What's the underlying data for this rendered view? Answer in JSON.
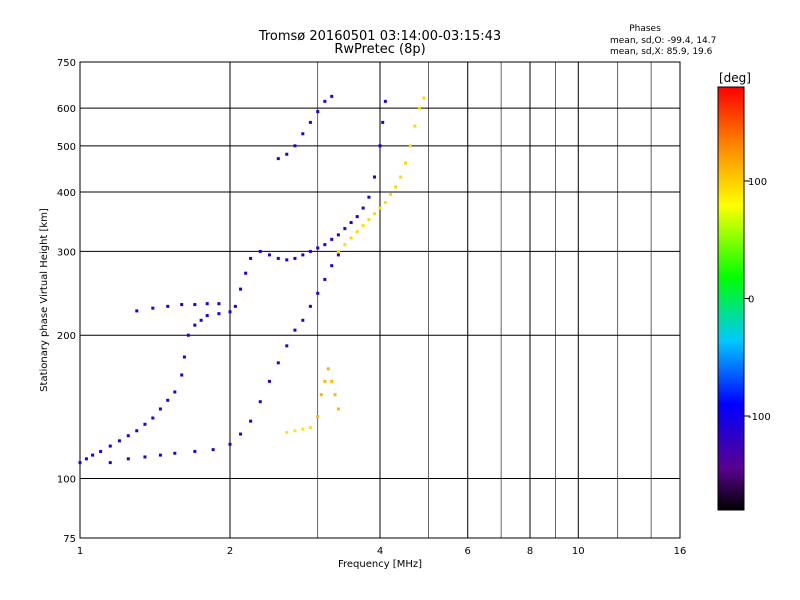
{
  "header": {
    "title_line1": "Tromsø 20160501 03:14:00-03:15:43",
    "title_line2": "RwPretec (8p)"
  },
  "stats": {
    "heading": "Phases",
    "line1": "mean, sd,O: -99.4, 14.7",
    "line2": "mean, sd,X:  85.9, 19.6"
  },
  "chart_data": {
    "type": "scatter",
    "title": "Tromsø 20160501 03:14:00-03:15:43",
    "subtitle": "RwPretec (8p)",
    "xlabel": "Frequency [MHz]",
    "ylabel": "Stationary phase Virtual Height [km]",
    "xscale": "log",
    "yscale": "log",
    "xlim": [
      1,
      16
    ],
    "ylim": [
      75,
      750
    ],
    "x_ticks": [
      1,
      2,
      4,
      6,
      8,
      10,
      16
    ],
    "x_tick_labels": [
      "1",
      "2",
      "4",
      "6",
      "8",
      "10",
      "16"
    ],
    "x_minor_ticks": [
      3,
      5,
      7,
      9,
      12,
      14
    ],
    "y_ticks": [
      75,
      100,
      200,
      300,
      400,
      500,
      600,
      750
    ],
    "y_tick_labels": [
      "75",
      "100",
      "200",
      "300",
      "400",
      "500",
      "600",
      "750"
    ],
    "grid": true,
    "colorbar": {
      "label": "[deg]",
      "range": [
        -180,
        180
      ],
      "ticks": [
        100,
        0,
        -100
      ],
      "tick_labels": [
        "100",
        "0",
        "-100"
      ],
      "colormap": "rainbow (black-purple-blue-cyan-green-yellow-orange-red)"
    },
    "series": [
      {
        "name": "",
        "phase": -105,
        "points": [
          [
            1.0,
            108
          ],
          [
            1.03,
            110
          ],
          [
            1.06,
            112
          ],
          [
            1.1,
            114
          ],
          [
            1.15,
            117
          ],
          [
            1.2,
            120
          ],
          [
            1.25,
            123
          ],
          [
            1.3,
            126
          ],
          [
            1.35,
            130
          ],
          [
            1.4,
            134
          ],
          [
            1.45,
            140
          ],
          [
            1.5,
            146
          ],
          [
            1.55,
            152
          ],
          [
            1.6,
            165
          ],
          [
            1.62,
            180
          ],
          [
            1.65,
            200
          ],
          [
            1.7,
            210
          ],
          [
            1.75,
            215
          ],
          [
            1.8,
            220
          ],
          [
            1.9,
            222
          ],
          [
            2.0,
            224
          ],
          [
            2.05,
            230
          ],
          [
            2.1,
            250
          ],
          [
            2.15,
            270
          ],
          [
            2.2,
            290
          ],
          [
            2.3,
            300
          ],
          [
            2.4,
            295
          ],
          [
            2.5,
            290
          ],
          [
            2.6,
            288
          ],
          [
            2.7,
            290
          ],
          [
            2.8,
            295
          ],
          [
            2.9,
            300
          ],
          [
            3.0,
            305
          ],
          [
            3.1,
            310
          ],
          [
            3.2,
            318
          ],
          [
            3.3,
            325
          ],
          [
            3.4,
            335
          ],
          [
            3.5,
            345
          ],
          [
            3.6,
            355
          ],
          [
            3.7,
            370
          ],
          [
            3.8,
            390
          ],
          [
            3.9,
            430
          ],
          [
            4.0,
            500
          ],
          [
            4.05,
            560
          ],
          [
            4.1,
            620
          ]
        ]
      },
      {
        "name": "",
        "phase": -110,
        "points": [
          [
            1.15,
            108
          ],
          [
            1.25,
            110
          ],
          [
            1.35,
            111
          ],
          [
            1.45,
            112
          ],
          [
            1.55,
            113
          ],
          [
            1.7,
            114
          ],
          [
            1.85,
            115
          ],
          [
            2.0,
            118
          ],
          [
            2.1,
            124
          ],
          [
            2.2,
            132
          ],
          [
            2.3,
            145
          ],
          [
            2.4,
            160
          ],
          [
            2.5,
            175
          ],
          [
            2.6,
            190
          ],
          [
            2.7,
            205
          ],
          [
            2.8,
            215
          ],
          [
            2.9,
            230
          ],
          [
            3.0,
            245
          ],
          [
            3.1,
            262
          ],
          [
            3.2,
            280
          ],
          [
            3.3,
            295
          ]
        ]
      },
      {
        "name": "",
        "phase": -100,
        "points": [
          [
            1.3,
            225
          ],
          [
            1.4,
            228
          ],
          [
            1.5,
            230
          ],
          [
            1.6,
            232
          ],
          [
            1.7,
            232
          ],
          [
            1.8,
            233
          ],
          [
            1.9,
            233
          ]
        ]
      },
      {
        "name": "",
        "phase": -105,
        "points": [
          [
            2.5,
            470
          ],
          [
            2.6,
            480
          ],
          [
            2.7,
            500
          ],
          [
            2.8,
            530
          ],
          [
            2.9,
            560
          ],
          [
            3.0,
            590
          ],
          [
            3.1,
            620
          ],
          [
            3.2,
            635
          ]
        ]
      },
      {
        "name": "",
        "phase": 95,
        "points": [
          [
            3.3,
            300
          ],
          [
            3.4,
            310
          ],
          [
            3.5,
            320
          ],
          [
            3.6,
            330
          ],
          [
            3.7,
            340
          ],
          [
            3.8,
            350
          ],
          [
            3.9,
            360
          ],
          [
            4.0,
            370
          ],
          [
            4.1,
            380
          ],
          [
            4.2,
            395
          ],
          [
            4.3,
            410
          ],
          [
            4.4,
            430
          ],
          [
            4.5,
            460
          ],
          [
            4.6,
            500
          ],
          [
            4.7,
            550
          ],
          [
            4.8,
            600
          ],
          [
            4.9,
            630
          ]
        ]
      },
      {
        "name": "",
        "phase": 110,
        "points": [
          [
            3.0,
            135
          ],
          [
            3.05,
            150
          ],
          [
            3.1,
            160
          ],
          [
            3.15,
            170
          ],
          [
            3.2,
            160
          ],
          [
            3.25,
            150
          ],
          [
            3.3,
            140
          ]
        ]
      },
      {
        "name": "",
        "phase": 90,
        "points": [
          [
            2.6,
            125
          ],
          [
            2.7,
            126
          ],
          [
            2.8,
            127
          ],
          [
            2.9,
            128
          ]
        ]
      }
    ]
  }
}
